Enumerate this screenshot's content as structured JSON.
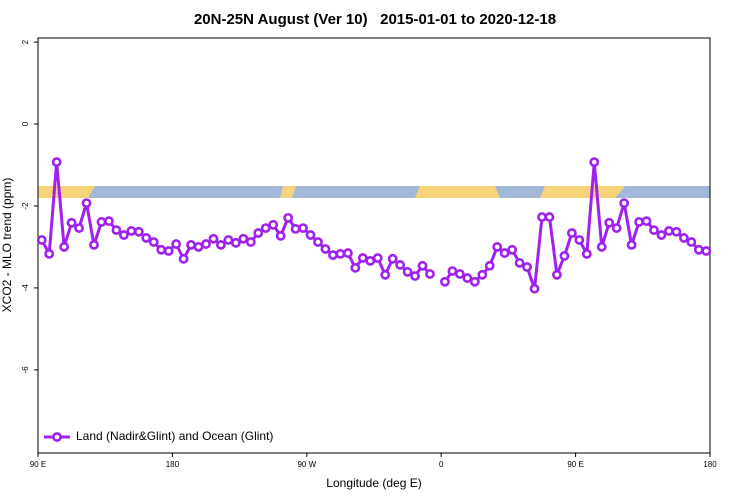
{
  "chart_data": {
    "type": "line",
    "title": "20N-25N August (Ver 10)   2015-01-01 to 2020-12-18",
    "xlabel": "Longitude (deg E)",
    "ylabel": "XCO2 - MLO trend (ppm)",
    "xlim": [
      90,
      540
    ],
    "ylim": [
      -8.03,
      2.1
    ],
    "xticks": [
      {
        "value": 90,
        "label": "90 E"
      },
      {
        "value": 180,
        "label": "180"
      },
      {
        "value": 270,
        "label": "90 W"
      },
      {
        "value": 360,
        "label": "0"
      },
      {
        "value": 450,
        "label": "90 E"
      },
      {
        "value": 540,
        "label": "180"
      }
    ],
    "yticks": [
      2,
      0,
      -2,
      -4,
      -6
    ],
    "legend": "bottom-left",
    "x": [
      92.5,
      97.5,
      102.5,
      107.5,
      112.5,
      117.5,
      122.5,
      127.5,
      132.5,
      137.5,
      142.5,
      147.5,
      152.5,
      157.5,
      162.5,
      167.5,
      172.5,
      177.5,
      182.5,
      187.5,
      192.5,
      197.5,
      202.5,
      207.5,
      212.5,
      217.5,
      222.5,
      227.5,
      232.5,
      237.5,
      242.5,
      247.5,
      252.5,
      257.5,
      262.5,
      267.5,
      272.5,
      277.5,
      282.5,
      287.5,
      292.5,
      297.5,
      302.5,
      307.5,
      312.5,
      317.5,
      322.5,
      327.5,
      332.5,
      337.5,
      342.5,
      347.5,
      352.5,
      357.5,
      362.5,
      367.5,
      372.5,
      377.5,
      382.5,
      387.5,
      392.5,
      397.5,
      402.5,
      407.5,
      412.5,
      417.5,
      422.5,
      427.5,
      432.5,
      437.5,
      442.5,
      447.5,
      452.5,
      457.5,
      462.5,
      467.5,
      472.5,
      477.5,
      482.5,
      487.5,
      492.5,
      497.5,
      502.5,
      507.5,
      512.5,
      517.5,
      522.5,
      527.5,
      532.5,
      537.5
    ],
    "series": [
      {
        "name": "Land (Nadir&Glint) and Ocean (Glint)",
        "color": "#a020f0",
        "values": [
          -2.83,
          -3.17,
          -0.93,
          -3.0,
          -2.41,
          -2.54,
          -1.93,
          -2.95,
          -2.39,
          -2.37,
          -2.59,
          -2.71,
          -2.61,
          -2.63,
          -2.78,
          -2.88,
          -3.07,
          -3.1,
          -2.93,
          -3.29,
          -2.95,
          -3.0,
          -2.93,
          -2.8,
          -2.95,
          -2.83,
          -2.9,
          -2.8,
          -2.88,
          -2.66,
          -2.54,
          -2.46,
          -2.73,
          -2.29,
          -2.56,
          -2.54,
          -2.71,
          -2.88,
          -3.05,
          -3.2,
          -3.17,
          -3.15,
          -3.51,
          -3.27,
          -3.34,
          -3.27,
          -3.68,
          -3.29,
          -3.44,
          -3.61,
          -3.71,
          -3.46,
          -3.66,
          null,
          -3.85,
          -3.59,
          -3.66,
          -3.76,
          -3.85,
          -3.68,
          -3.46,
          -3.0,
          -3.15,
          -3.07,
          -3.39,
          -3.49,
          -4.02,
          -2.27,
          -2.27,
          -3.68,
          -3.22,
          -2.66,
          -2.83,
          -3.17,
          -0.93,
          -3.0,
          -2.41,
          -2.54,
          -1.93,
          -2.95,
          -2.39,
          -2.37,
          -2.59,
          -2.71,
          -2.61,
          -2.63,
          -2.78,
          -2.88,
          -3.07,
          -3.1
        ]
      }
    ]
  }
}
